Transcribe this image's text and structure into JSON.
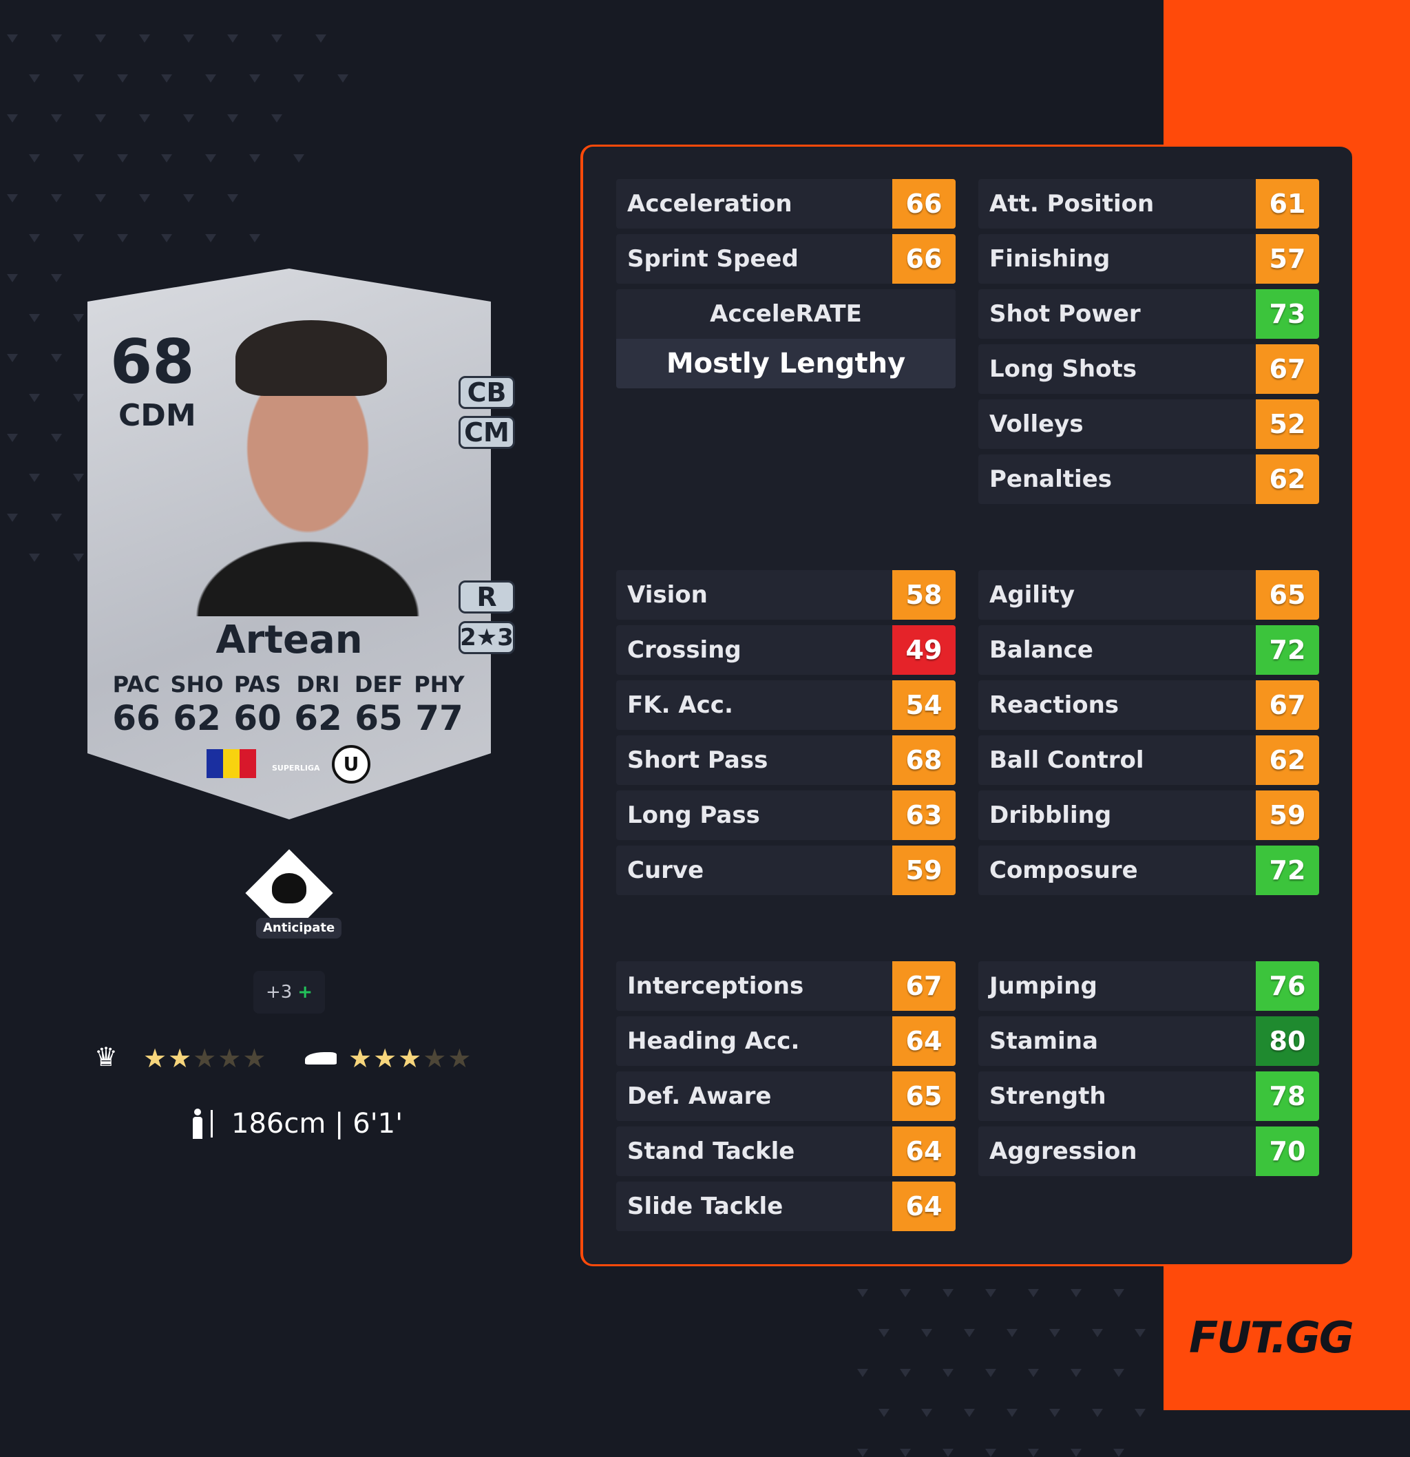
{
  "colors": {
    "accent": "#ff4a0a",
    "orange": "#f7941d",
    "green": "#3cc43c",
    "dark_green": "#1f8a2f",
    "red": "#e52329"
  },
  "card": {
    "rating": "68",
    "position": "CDM",
    "alt_positions": [
      "CB",
      "CM"
    ],
    "foot": "R",
    "skill_weak": "2★3",
    "name": "Artean",
    "stats": [
      {
        "label": "PAC",
        "value": "66"
      },
      {
        "label": "SHO",
        "value": "62"
      },
      {
        "label": "PAS",
        "value": "60"
      },
      {
        "label": "DRI",
        "value": "62"
      },
      {
        "label": "DEF",
        "value": "65"
      },
      {
        "label": "PHY",
        "value": "77"
      }
    ],
    "nation": "Romania",
    "league_logo": "SUPERLIGA",
    "club_logo": "U"
  },
  "playstyle": {
    "label": "Anticipate",
    "icon": "raccoon-icon"
  },
  "playstyles_more": {
    "label": "+3",
    "icon": "plus-icon"
  },
  "skill_moves": {
    "icon": "jester-hat-icon",
    "stars": 2,
    "max": 5
  },
  "weak_foot": {
    "icon": "boot-icon",
    "stars": 3,
    "max": 5
  },
  "height": {
    "icon": "height-icon",
    "text": "186cm | 6'1'"
  },
  "accelerate": {
    "title": "AcceleRATE",
    "value": "Mostly Lengthy"
  },
  "groups": [
    {
      "left": [
        {
          "label": "Acceleration",
          "value": 66
        },
        {
          "label": "Sprint Speed",
          "value": 66
        }
      ],
      "right": [
        {
          "label": "Att. Position",
          "value": 61
        },
        {
          "label": "Finishing",
          "value": 57
        },
        {
          "label": "Shot Power",
          "value": 73
        },
        {
          "label": "Long Shots",
          "value": 67
        },
        {
          "label": "Volleys",
          "value": 52
        },
        {
          "label": "Penalties",
          "value": 62
        }
      ]
    },
    {
      "left": [
        {
          "label": "Vision",
          "value": 58
        },
        {
          "label": "Crossing",
          "value": 49
        },
        {
          "label": "FK. Acc.",
          "value": 54
        },
        {
          "label": "Short Pass",
          "value": 68
        },
        {
          "label": "Long Pass",
          "value": 63
        },
        {
          "label": "Curve",
          "value": 59
        }
      ],
      "right": [
        {
          "label": "Agility",
          "value": 65
        },
        {
          "label": "Balance",
          "value": 72
        },
        {
          "label": "Reactions",
          "value": 67
        },
        {
          "label": "Ball Control",
          "value": 62
        },
        {
          "label": "Dribbling",
          "value": 59
        },
        {
          "label": "Composure",
          "value": 72
        }
      ]
    },
    {
      "left": [
        {
          "label": "Interceptions",
          "value": 67
        },
        {
          "label": "Heading Acc.",
          "value": 64
        },
        {
          "label": "Def. Aware",
          "value": 65
        },
        {
          "label": "Stand Tackle",
          "value": 64
        },
        {
          "label": "Slide Tackle",
          "value": 64
        }
      ],
      "right": [
        {
          "label": "Jumping",
          "value": 76
        },
        {
          "label": "Stamina",
          "value": 80
        },
        {
          "label": "Strength",
          "value": 78
        },
        {
          "label": "Aggression",
          "value": 70
        }
      ]
    }
  ],
  "brand": "FUT.GG"
}
